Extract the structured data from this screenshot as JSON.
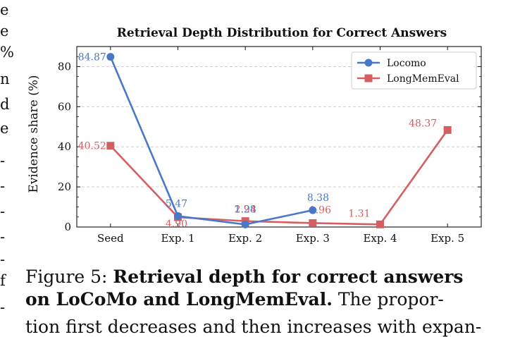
{
  "left_text_fragments": [
    "e",
    "e",
    "%",
    "n",
    "d",
    "e",
    "-",
    "-",
    "-",
    "-",
    "-",
    "f",
    "-"
  ],
  "caption": {
    "label": "Figure 5:",
    "bold_part_line1": "Retrieval depth for correct answers",
    "bold_part_line2": "on LoCoMo and LongMemEval.",
    "rest_line2": " The propor-",
    "line3": "tion first decreases and then increases with expan-"
  },
  "chart_data": {
    "type": "line",
    "title": "Retrieval Depth Distribution for Correct Answers",
    "ylabel": "Evidence share (%)",
    "xlabel": "",
    "categories": [
      "Seed",
      "Exp. 1",
      "Exp. 2",
      "Exp. 3",
      "Exp. 4",
      "Exp. 5"
    ],
    "ylim": [
      0,
      90
    ],
    "yticks": [
      0,
      20,
      40,
      60,
      80
    ],
    "grid": "y",
    "legend_position": "top-right",
    "series": [
      {
        "name": "Locomo",
        "color": "#4a78c9",
        "marker": "circle",
        "values": [
          84.87,
          5.47,
          1.28,
          8.38,
          null,
          null
        ],
        "labels": [
          "84.87",
          "5.47",
          "1.28",
          "8.38",
          "",
          ""
        ]
      },
      {
        "name": "LongMemEval",
        "color": "#d45f60",
        "marker": "square",
        "values": [
          40.52,
          4.9,
          2.94,
          1.96,
          1.31,
          48.37
        ],
        "labels": [
          "40.52",
          "4.90",
          "2.94",
          "1.96",
          "1.31",
          "48.37"
        ]
      }
    ]
  }
}
